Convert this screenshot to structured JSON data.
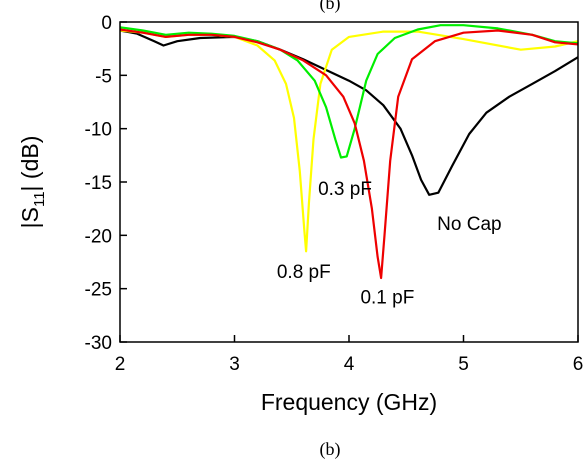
{
  "chart_data": {
    "type": "line",
    "header_fragment": "(b)",
    "caption": "(b)",
    "xlabel": "Frequency (GHz)",
    "ylabel_main": "|S",
    "ylabel_sub": "11",
    "ylabel_tail": "| (dB)",
    "xlim": [
      2,
      6
    ],
    "ylim": [
      -30,
      0
    ],
    "xticks": [
      2,
      3,
      4,
      5,
      6
    ],
    "yticks": [
      0,
      -5,
      -10,
      -15,
      -20,
      -25,
      -30
    ],
    "grid": false,
    "series": [
      {
        "name": "No Cap",
        "color": "#000000",
        "points": [
          [
            2.0,
            -0.8
          ],
          [
            2.15,
            -1.1
          ],
          [
            2.3,
            -1.8
          ],
          [
            2.38,
            -2.2
          ],
          [
            2.5,
            -1.8
          ],
          [
            2.7,
            -1.5
          ],
          [
            3.0,
            -1.4
          ],
          [
            3.2,
            -1.8
          ],
          [
            3.4,
            -2.6
          ],
          [
            3.6,
            -3.5
          ],
          [
            3.8,
            -4.5
          ],
          [
            4.0,
            -5.5
          ],
          [
            4.15,
            -6.4
          ],
          [
            4.3,
            -7.8
          ],
          [
            4.45,
            -10.0
          ],
          [
            4.55,
            -12.5
          ],
          [
            4.63,
            -14.8
          ],
          [
            4.7,
            -16.2
          ],
          [
            4.78,
            -16.0
          ],
          [
            4.9,
            -13.5
          ],
          [
            5.05,
            -10.5
          ],
          [
            5.2,
            -8.5
          ],
          [
            5.4,
            -7.0
          ],
          [
            5.6,
            -5.8
          ],
          [
            5.8,
            -4.6
          ],
          [
            6.0,
            -3.3
          ]
        ]
      },
      {
        "name": "0.8 pF",
        "color": "#ffff00",
        "points": [
          [
            2.0,
            -0.8
          ],
          [
            2.2,
            -1.0
          ],
          [
            2.4,
            -1.4
          ],
          [
            2.6,
            -1.2
          ],
          [
            2.8,
            -1.2
          ],
          [
            3.0,
            -1.4
          ],
          [
            3.2,
            -2.2
          ],
          [
            3.35,
            -3.6
          ],
          [
            3.45,
            -5.8
          ],
          [
            3.52,
            -9.0
          ],
          [
            3.57,
            -14.0
          ],
          [
            3.61,
            -19.5
          ],
          [
            3.625,
            -21.5
          ],
          [
            3.65,
            -17.0
          ],
          [
            3.69,
            -11.0
          ],
          [
            3.75,
            -5.8
          ],
          [
            3.85,
            -2.6
          ],
          [
            4.0,
            -1.4
          ],
          [
            4.3,
            -0.9
          ],
          [
            4.6,
            -0.9
          ],
          [
            5.0,
            -1.6
          ],
          [
            5.5,
            -2.6
          ],
          [
            5.8,
            -2.3
          ],
          [
            6.0,
            -1.8
          ]
        ]
      },
      {
        "name": "0.3 pF",
        "color": "#00ee00",
        "points": [
          [
            2.0,
            -0.5
          ],
          [
            2.2,
            -0.8
          ],
          [
            2.4,
            -1.2
          ],
          [
            2.6,
            -1.0
          ],
          [
            2.8,
            -1.1
          ],
          [
            3.0,
            -1.3
          ],
          [
            3.2,
            -1.8
          ],
          [
            3.4,
            -2.6
          ],
          [
            3.55,
            -3.6
          ],
          [
            3.7,
            -5.5
          ],
          [
            3.8,
            -8.0
          ],
          [
            3.88,
            -11.0
          ],
          [
            3.93,
            -12.7
          ],
          [
            3.98,
            -12.6
          ],
          [
            4.05,
            -10.0
          ],
          [
            4.15,
            -5.5
          ],
          [
            4.25,
            -3.0
          ],
          [
            4.4,
            -1.5
          ],
          [
            4.6,
            -0.7
          ],
          [
            4.8,
            -0.3
          ],
          [
            5.0,
            -0.3
          ],
          [
            5.3,
            -0.6
          ],
          [
            5.6,
            -1.2
          ],
          [
            5.8,
            -1.8
          ],
          [
            6.0,
            -2.0
          ]
        ]
      },
      {
        "name": "0.1 pF",
        "color": "#ee0000",
        "points": [
          [
            2.0,
            -0.7
          ],
          [
            2.2,
            -1.0
          ],
          [
            2.4,
            -1.4
          ],
          [
            2.6,
            -1.2
          ],
          [
            2.8,
            -1.2
          ],
          [
            3.0,
            -1.4
          ],
          [
            3.2,
            -1.9
          ],
          [
            3.4,
            -2.6
          ],
          [
            3.6,
            -3.6
          ],
          [
            3.8,
            -5.0
          ],
          [
            3.95,
            -7.0
          ],
          [
            4.05,
            -9.5
          ],
          [
            4.13,
            -13.0
          ],
          [
            4.2,
            -17.5
          ],
          [
            4.25,
            -22.0
          ],
          [
            4.28,
            -24.0
          ],
          [
            4.31,
            -20.0
          ],
          [
            4.36,
            -13.0
          ],
          [
            4.43,
            -7.0
          ],
          [
            4.55,
            -3.5
          ],
          [
            4.75,
            -1.8
          ],
          [
            5.0,
            -1.0
          ],
          [
            5.3,
            -0.8
          ],
          [
            5.6,
            -1.2
          ],
          [
            5.8,
            -1.9
          ],
          [
            6.0,
            -2.1
          ]
        ]
      }
    ],
    "annotations": [
      {
        "text": "0.3 pF",
        "x": 3.73,
        "y": -16.2,
        "anchor": "start"
      },
      {
        "text": "No Cap",
        "x": 4.77,
        "y": -19.5,
        "anchor": "start"
      },
      {
        "text": "0.8 pF",
        "x": 3.37,
        "y": -24.0,
        "anchor": "start"
      },
      {
        "text": "0.1 pF",
        "x": 4.1,
        "y": -26.4,
        "anchor": "start"
      }
    ]
  }
}
